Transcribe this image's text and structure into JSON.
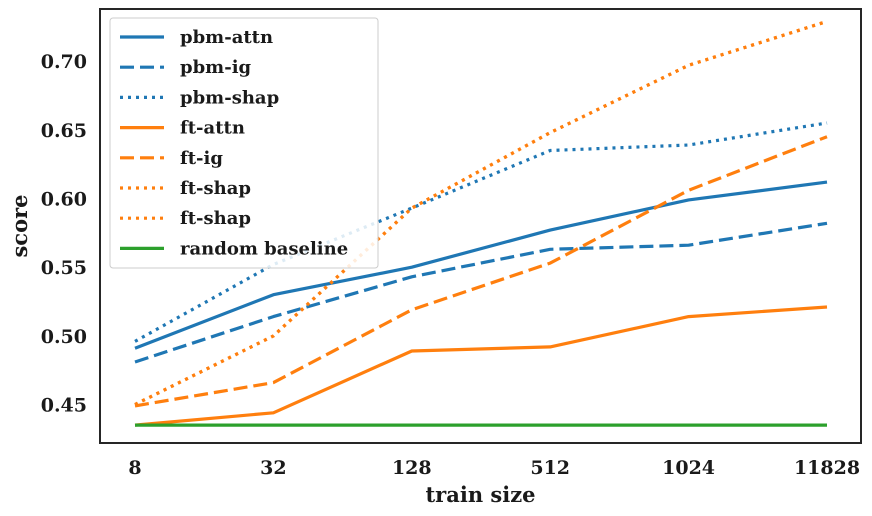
{
  "chart_data": {
    "type": "line",
    "title": "",
    "xlabel": "train size",
    "ylabel": "score",
    "categories": [
      "8",
      "32",
      "128",
      "512",
      "1024",
      "11828"
    ],
    "ylim": [
      0.422,
      0.738
    ],
    "yticks": [
      "0.45",
      "0.50",
      "0.55",
      "0.60",
      "0.65",
      "0.70"
    ],
    "grid": false,
    "legend_position": "top-left",
    "series": [
      {
        "name": "pbm-attn",
        "color": "#1f77b4",
        "style": "solid",
        "values": [
          0.491,
          0.53,
          0.55,
          0.577,
          0.599,
          0.612
        ]
      },
      {
        "name": "pbm-ig",
        "color": "#1f77b4",
        "style": "dashed",
        "values": [
          0.481,
          0.514,
          0.543,
          0.563,
          0.566,
          0.582
        ]
      },
      {
        "name": "pbm-shap",
        "color": "#1f77b4",
        "style": "dotted",
        "values": [
          0.496,
          0.552,
          0.593,
          0.635,
          0.639,
          0.655
        ]
      },
      {
        "name": "ft-attn",
        "color": "#ff7f0e",
        "style": "solid",
        "values": [
          0.435,
          0.444,
          0.489,
          0.492,
          0.514,
          0.521
        ]
      },
      {
        "name": "ft-ig",
        "color": "#ff7f0e",
        "style": "dashed",
        "values": [
          0.449,
          0.466,
          0.519,
          0.553,
          0.606,
          0.645
        ]
      },
      {
        "name": "ft-shap",
        "color": "#ff7f0e",
        "style": "dotted",
        "values": [
          0.45,
          0.5,
          0.593,
          0.648,
          0.697,
          0.729
        ]
      },
      {
        "name": "ft-shap",
        "color": "#ff7f0e",
        "style": "dotted",
        "values": [
          0.45,
          0.5,
          0.593,
          0.648,
          0.697,
          0.729
        ]
      },
      {
        "name": "random baseline",
        "color": "#2ca02c",
        "style": "solid",
        "values": [
          0.435,
          0.435,
          0.435,
          0.435,
          0.435,
          0.435
        ]
      }
    ]
  }
}
